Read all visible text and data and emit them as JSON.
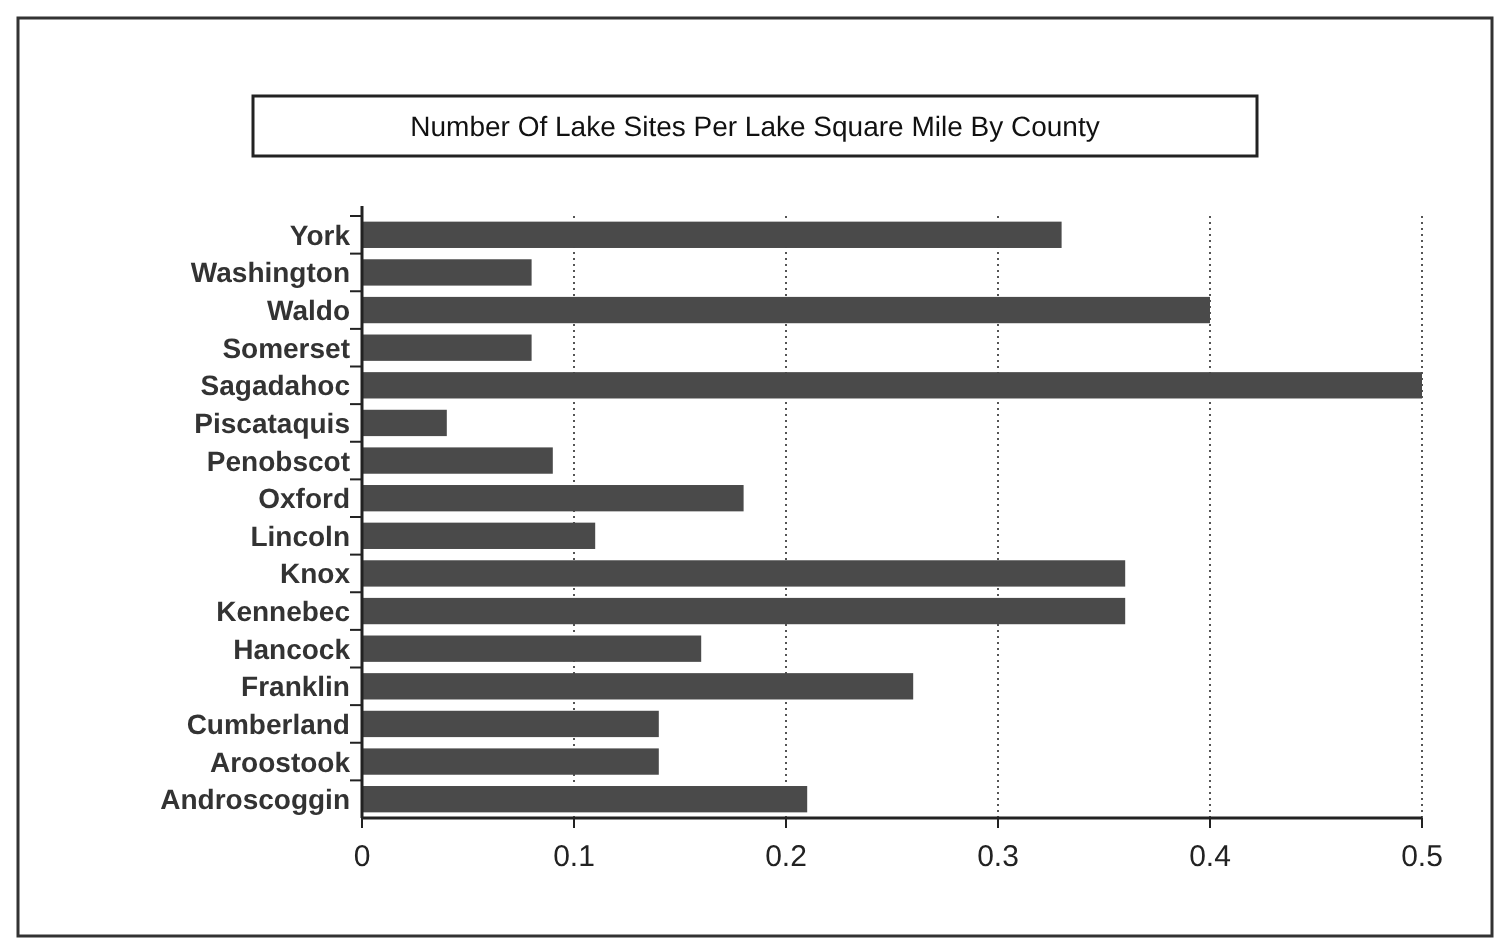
{
  "chart_data": {
    "type": "bar",
    "orientation": "horizontal",
    "title": "Number Of Lake Sites Per Lake Square Mile By County",
    "categories": [
      "York",
      "Washington",
      "Waldo",
      "Somerset",
      "Sagadahoc",
      "Piscataquis",
      "Penobscot",
      "Oxford",
      "Lincoln",
      "Knox",
      "Kennebec",
      "Hancock",
      "Franklin",
      "Cumberland",
      "Aroostook",
      "Androscoggin"
    ],
    "values": [
      0.33,
      0.08,
      0.4,
      0.08,
      0.5,
      0.04,
      0.09,
      0.18,
      0.11,
      0.36,
      0.36,
      0.16,
      0.26,
      0.14,
      0.14,
      0.21
    ],
    "color": "#4a4a4a",
    "xlim": [
      0,
      0.5
    ],
    "xticks": [
      0,
      0.1,
      0.2,
      0.3,
      0.4,
      0.5
    ],
    "grid": "x"
  }
}
